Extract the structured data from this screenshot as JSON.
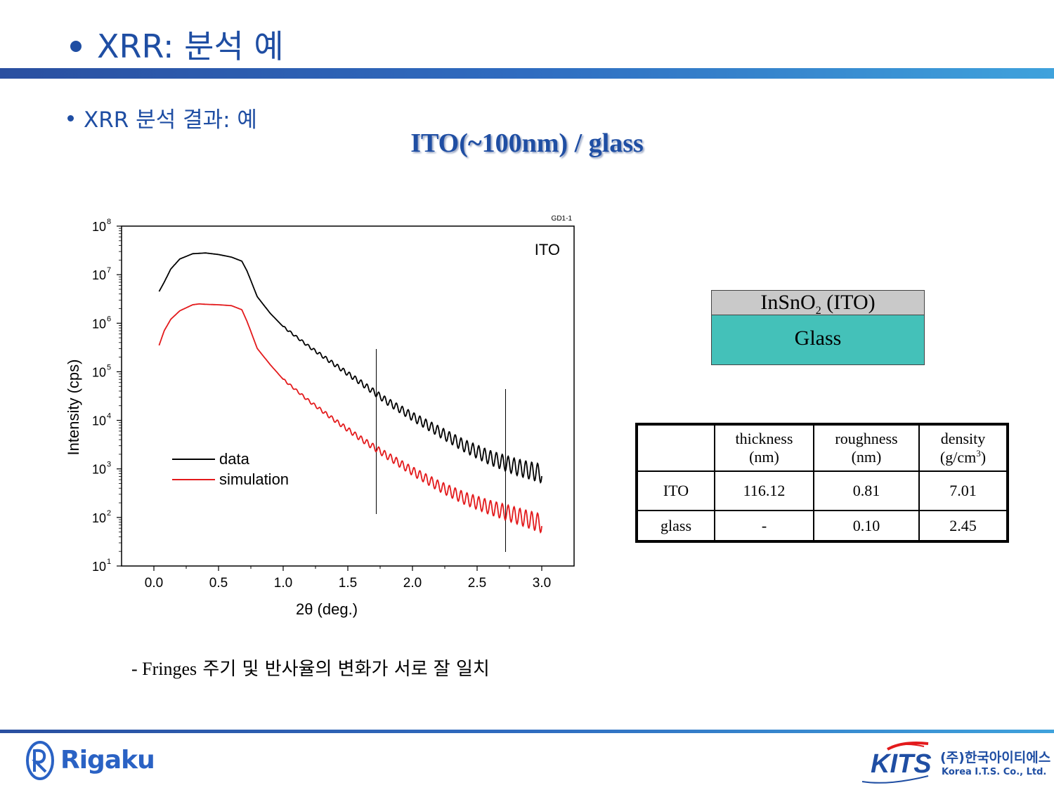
{
  "header": {
    "title": "XRR: 분석 예",
    "bullet": "XRR 분석 결과: 예",
    "chart_heading": "ITO(~100nm) / glass"
  },
  "chart_data": {
    "type": "line",
    "sample_id": "GD1-1",
    "annotation": "ITO",
    "xlabel": "2θ (deg.)",
    "ylabel": "Intensity (cps)",
    "xlim": [
      -0.25,
      3.25
    ],
    "ylim": [
      10,
      100000000
    ],
    "yscale": "log",
    "x_ticks": [
      "0.0",
      "0.5",
      "1.0",
      "1.5",
      "2.0",
      "2.5",
      "3.0"
    ],
    "x_tick_values": [
      0.0,
      0.5,
      1.0,
      1.5,
      2.0,
      2.5,
      3.0
    ],
    "y_tick_exponents": [
      1,
      2,
      3,
      4,
      5,
      6,
      7,
      8
    ],
    "y_tick_base": "10",
    "legend_position": "center-left",
    "vertical_markers_x": [
      1.72,
      2.72
    ],
    "series": [
      {
        "name": "data",
        "color": "#000000",
        "x": [
          0.04,
          0.08,
          0.13,
          0.2,
          0.3,
          0.4,
          0.5,
          0.6,
          0.68,
          0.72,
          0.8,
          0.9,
          1.0,
          1.2,
          1.4,
          1.6,
          1.8,
          2.0,
          2.2,
          2.4,
          2.6,
          2.8,
          3.0
        ],
        "y": [
          4500000,
          7000000,
          13000000,
          21000000,
          27000000,
          28000000,
          26000000,
          23000000,
          19000000,
          12000000,
          3500000,
          1600000,
          850000,
          330000,
          140000,
          60000,
          25000,
          12000,
          6000,
          3000,
          1700,
          1100,
          800
        ]
      },
      {
        "name": "simulation",
        "color": "#e31a1c",
        "x": [
          0.04,
          0.08,
          0.13,
          0.2,
          0.3,
          0.35,
          0.4,
          0.5,
          0.6,
          0.68,
          0.72,
          0.8,
          0.9,
          1.0,
          1.2,
          1.4,
          1.6,
          1.8,
          2.0,
          2.2,
          2.4,
          2.6,
          2.8,
          3.0
        ],
        "y": [
          350000,
          700000,
          1200000,
          1800000,
          2400000,
          2500000,
          2450000,
          2400000,
          2300000,
          1900000,
          1100000,
          300000,
          140000,
          70000,
          25000,
          10000,
          4200,
          1900,
          900,
          450,
          250,
          160,
          110,
          75
        ]
      }
    ],
    "fringe_start_x": 1.0,
    "fringe_period": 0.0455
  },
  "layer_stack": {
    "top_layer": {
      "formula": "InSnO",
      "subscript": "2",
      "suffix": " (ITO)"
    },
    "substrate": "Glass"
  },
  "results_table": {
    "headers": [
      {
        "line1": "thickness",
        "line2": "(nm)",
        "sup": ""
      },
      {
        "line1": "roughness",
        "line2": "(nm)",
        "sup": ""
      },
      {
        "line1": "density",
        "line2": "(g/cm",
        "sup": "3",
        "line2_end": ")"
      }
    ],
    "rows": [
      {
        "layer": "ITO",
        "thickness": "116.12",
        "roughness": "0.81",
        "density": "7.01"
      },
      {
        "layer": "glass",
        "thickness": "-",
        "roughness": "0.10",
        "density": "2.45"
      }
    ]
  },
  "caption": {
    "prefix": "- Fringes",
    "text": " 주기 및 반사율의 변화가 서로 잘 일치"
  },
  "footer": {
    "rigaku": "Rigaku",
    "kits_logo": "KITS",
    "kits_korean": "(주)한국아이티에스",
    "kits_english": "Korea I.T.S. Co., Ltd."
  }
}
